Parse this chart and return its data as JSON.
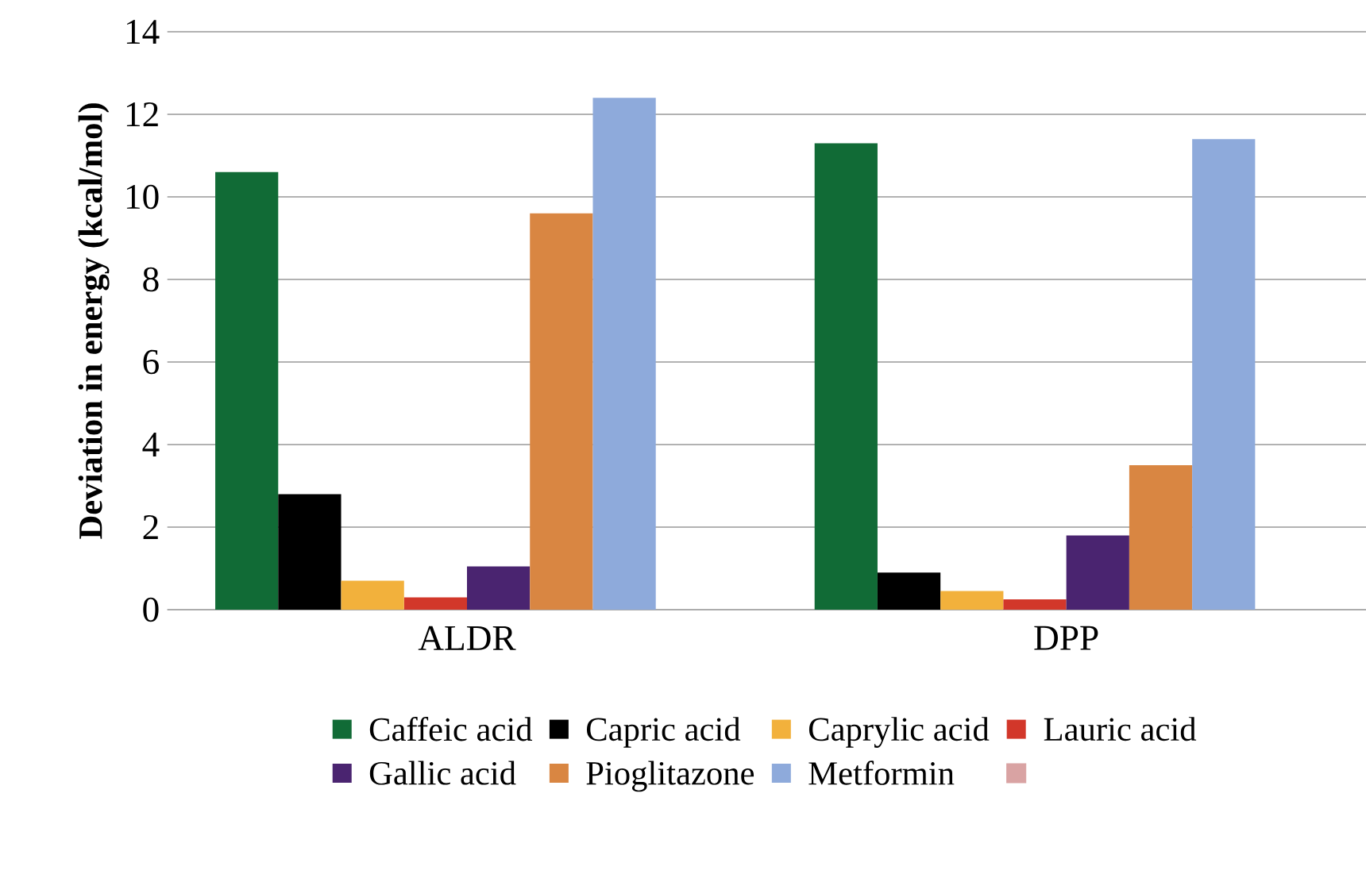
{
  "chart_data": {
    "type": "bar",
    "ylabel": "Deviation in energy (kcal/mol)",
    "categories": [
      "ALDR",
      "DPP"
    ],
    "series": [
      {
        "name": "Caffeic acid",
        "color": "#116b36",
        "values": [
          10.6,
          11.3
        ]
      },
      {
        "name": "Capric acid",
        "color": "#000000",
        "values": [
          2.8,
          0.9
        ]
      },
      {
        "name": "Caprylic acid",
        "color": "#f2b13c",
        "values": [
          0.7,
          0.45
        ]
      },
      {
        "name": "Lauric acid",
        "color": "#d2372a",
        "values": [
          0.3,
          0.25
        ]
      },
      {
        "name": "Gallic acid",
        "color": "#4a2470",
        "values": [
          1.05,
          1.8
        ]
      },
      {
        "name": "Pioglitazone",
        "color": "#d98642",
        "values": [
          9.6,
          3.5
        ]
      },
      {
        "name": "Metformin",
        "color": "#8eaadb",
        "values": [
          12.4,
          11.4
        ]
      },
      {
        "color": "#d9a3a3",
        "values": [
          null,
          null
        ]
      }
    ],
    "ylim": [
      0,
      14
    ],
    "yticks": [
      0,
      2,
      4,
      6,
      8,
      10,
      12,
      14
    ],
    "grid": "y",
    "legend": "bottom"
  }
}
